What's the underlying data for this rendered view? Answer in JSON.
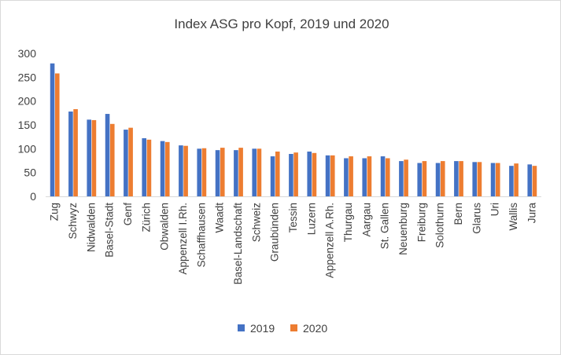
{
  "chart_data": {
    "type": "bar",
    "title": "Index ASG pro Kopf, 2019 und 2020",
    "xlabel": "",
    "ylabel": "",
    "ylim": [
      0,
      300
    ],
    "yticks": [
      0,
      50,
      100,
      150,
      200,
      250,
      300
    ],
    "grid": false,
    "legend_position": "bottom",
    "categories": [
      "Zug",
      "Schwyz",
      "Nidwalden",
      "Basel-Stadt",
      "Genf",
      "Zürich",
      "Obwalden",
      "Appenzell I.Rh.",
      "Schaffhausen",
      "Waadt",
      "Basel-Landschaft",
      "Schweiz",
      "Graubünden",
      "Tessin",
      "Luzern",
      "Appenzell A.Rh.",
      "Thurgau",
      "Aargau",
      "St. Gallen",
      "Neuenburg",
      "Freiburg",
      "Solothurn",
      "Bern",
      "Glarus",
      "Uri",
      "Wallis",
      "Jura"
    ],
    "series": [
      {
        "name": "2019",
        "color": "#4472c4",
        "values": [
          279,
          178,
          161,
          173,
          140,
          122,
          116,
          107,
          100,
          97,
          97,
          100,
          84,
          89,
          94,
          86,
          80,
          80,
          84,
          74,
          70,
          70,
          74,
          72,
          70,
          64,
          67
        ]
      },
      {
        "name": "2020",
        "color": "#ed7d31",
        "values": [
          258,
          183,
          160,
          152,
          144,
          119,
          114,
          106,
          101,
          102,
          102,
          100,
          94,
          92,
          91,
          86,
          84,
          84,
          80,
          77,
          74,
          74,
          74,
          72,
          70,
          69,
          64
        ]
      }
    ]
  }
}
